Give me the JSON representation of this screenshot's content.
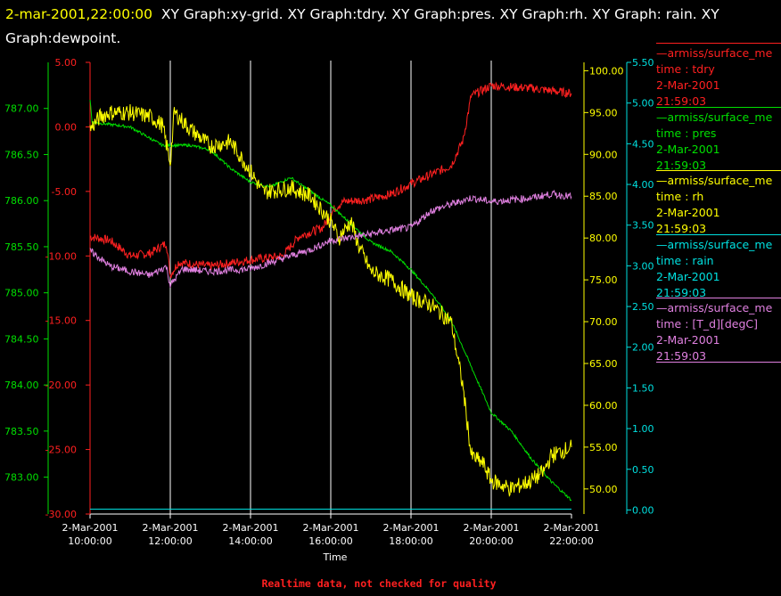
{
  "header": {
    "timestamp": "2-mar-2001,22:00:00",
    "graphs": "XY Graph:xy-grid.  XY Graph:tdry.  XY Graph:pres.  XY Graph:rh.  XY Graph: rain.  XY Graph:dewpoint."
  },
  "footer": {
    "note": "Realtime data, not checked for quality"
  },
  "colors": {
    "tdry": "#ff2020",
    "pres": "#00e000",
    "rh": "#ffff00",
    "rain": "#00e0e0",
    "dewpoint": "#e080e0",
    "grid": "#ffffff"
  },
  "legend": [
    {
      "name": "armiss/surface_me",
      "var": "time : tdry",
      "date": "2-Mar-2001",
      "time": "21:59:03",
      "color": "#ff2020"
    },
    {
      "name": "armiss/surface_me",
      "var": "time : pres",
      "date": "2-Mar-2001",
      "time": "21:59:03",
      "color": "#00e000"
    },
    {
      "name": "armiss/surface_me",
      "var": "time : rh",
      "date": "2-Mar-2001",
      "time": "21:59:03",
      "color": "#ffff00"
    },
    {
      "name": "armiss/surface_me",
      "var": "time : rain",
      "date": "2-Mar-2001",
      "time": "21:59:03",
      "color": "#00e0e0"
    },
    {
      "name": "armiss/surface_me",
      "var": "time : [T_d][degC]",
      "date": "2-Mar-2001",
      "time": "21:59:03",
      "color": "#e080e0"
    }
  ],
  "chart_data": {
    "type": "line",
    "xlabel": "Time",
    "x_range": [
      "2-Mar-2001 10:00:00",
      "2-Mar-2001 22:00:00"
    ],
    "x_ticks": [
      {
        "date": "2-Mar-2001",
        "time": "10:00:00",
        "hour": 10
      },
      {
        "date": "2-Mar-2001",
        "time": "12:00:00",
        "hour": 12
      },
      {
        "date": "2-Mar-2001",
        "time": "14:00:00",
        "hour": 14
      },
      {
        "date": "2-Mar-2001",
        "time": "16:00:00",
        "hour": 16
      },
      {
        "date": "2-Mar-2001",
        "time": "18:00:00",
        "hour": 18
      },
      {
        "date": "2-Mar-2001",
        "time": "20:00:00",
        "hour": 20
      },
      {
        "date": "2-Mar-2001",
        "time": "22:00:00",
        "hour": 22
      }
    ],
    "grid": "vertical",
    "axes": [
      {
        "id": "pres",
        "color": "#00e000",
        "range": [
          782.6,
          787.5
        ],
        "ticks": [
          "787.00",
          "786.50",
          "786.00",
          "785.50",
          "785.00",
          "784.50",
          "784.00",
          "783.50",
          "783.00"
        ]
      },
      {
        "id": "tdry",
        "color": "#ff2020",
        "range": [
          -30,
          5
        ],
        "ticks": [
          "5.00",
          "0.00",
          "-5.00",
          "-10.00",
          "-15.00",
          "-20.00",
          "-25.00",
          "-30.00"
        ]
      },
      {
        "id": "rh",
        "color": "#ffff00",
        "range": [
          47,
          101
        ],
        "ticks": [
          "100.00",
          "95.00",
          "90.00",
          "85.00",
          "80.00",
          "75.00",
          "70.00",
          "65.00",
          "60.00",
          "55.00",
          "50.00"
        ]
      },
      {
        "id": "rain",
        "color": "#00e0e0",
        "range": [
          -0.05,
          5.5
        ],
        "ticks": [
          "5.50",
          "5.00",
          "4.50",
          "4.00",
          "3.50",
          "3.00",
          "2.50",
          "2.00",
          "1.50",
          "1.00",
          "0.50",
          "0.00"
        ]
      }
    ],
    "series": [
      {
        "name": "time : tdry",
        "axis": "tdry",
        "color": "#ff2020",
        "noise": 0.35,
        "points": [
          [
            10,
            -8.5
          ],
          [
            10.5,
            -8.8
          ],
          [
            11,
            -10
          ],
          [
            11.5,
            -9.8
          ],
          [
            11.9,
            -9.0
          ],
          [
            12,
            -11.5
          ],
          [
            12.2,
            -10.5
          ],
          [
            13,
            -10.8
          ],
          [
            14,
            -10.3
          ],
          [
            14.8,
            -10
          ],
          [
            15.2,
            -8.5
          ],
          [
            15.8,
            -7.8
          ],
          [
            16.1,
            -6.3
          ],
          [
            16.3,
            -5.8
          ],
          [
            17,
            -5.6
          ],
          [
            17.5,
            -5.2
          ],
          [
            18,
            -4.4
          ],
          [
            19,
            -3.0
          ],
          [
            19.3,
            -1.0
          ],
          [
            19.5,
            2.4
          ],
          [
            20,
            3.2
          ],
          [
            21,
            3.0
          ],
          [
            22,
            2.6
          ]
        ]
      },
      {
        "name": "time : pres",
        "axis": "pres",
        "color": "#00e000",
        "noise": 0.015,
        "points": [
          [
            10,
            787.1
          ],
          [
            10.05,
            786.85
          ],
          [
            11,
            786.8
          ],
          [
            11.8,
            786.6
          ],
          [
            12.5,
            786.6
          ],
          [
            13,
            786.55
          ],
          [
            13.5,
            786.35
          ],
          [
            14,
            786.2
          ],
          [
            14.5,
            786.15
          ],
          [
            15,
            786.25
          ],
          [
            15.5,
            786.1
          ],
          [
            16,
            785.95
          ],
          [
            16.5,
            785.75
          ],
          [
            17,
            785.55
          ],
          [
            17.5,
            785.45
          ],
          [
            18,
            785.25
          ],
          [
            18.5,
            785.0
          ],
          [
            19,
            784.7
          ],
          [
            19.5,
            784.2
          ],
          [
            20,
            783.7
          ],
          [
            20.5,
            783.5
          ],
          [
            21,
            783.2
          ],
          [
            21.5,
            782.95
          ],
          [
            22,
            782.75
          ]
        ]
      },
      {
        "name": "time : rh",
        "axis": "rh",
        "color": "#ffff00",
        "noise": 1.0,
        "points": [
          [
            10,
            93
          ],
          [
            10.25,
            94.5
          ],
          [
            10.5,
            95
          ],
          [
            11,
            95
          ],
          [
            11.5,
            94.5
          ],
          [
            11.8,
            93.5
          ],
          [
            12,
            89
          ],
          [
            12.1,
            95
          ],
          [
            12.5,
            93
          ],
          [
            13,
            91
          ],
          [
            13.5,
            91.5
          ],
          [
            14,
            88
          ],
          [
            14.3,
            85.5
          ],
          [
            15,
            86
          ],
          [
            15.5,
            85
          ],
          [
            16,
            82
          ],
          [
            16.2,
            80
          ],
          [
            16.5,
            82
          ],
          [
            16.7,
            79
          ],
          [
            17,
            76
          ],
          [
            17.5,
            75
          ],
          [
            18,
            73
          ],
          [
            18.5,
            72
          ],
          [
            19,
            70
          ],
          [
            19.3,
            62
          ],
          [
            19.5,
            54
          ],
          [
            19.8,
            53
          ],
          [
            20,
            51
          ],
          [
            20.5,
            50
          ],
          [
            21,
            51
          ],
          [
            21.3,
            52
          ],
          [
            21.5,
            54
          ],
          [
            22,
            55
          ]
        ]
      },
      {
        "name": "time : rain",
        "axis": "rain",
        "color": "#00e0e0",
        "noise": 0,
        "points": [
          [
            10,
            0.01
          ],
          [
            22,
            0.01
          ]
        ]
      },
      {
        "name": "time : [T_d][degC]",
        "axis": "tdry",
        "color": "#e080e0",
        "noise": 0.28,
        "points": [
          [
            10,
            -9.6
          ],
          [
            10.5,
            -10.8
          ],
          [
            11,
            -11.2
          ],
          [
            11.5,
            -11.5
          ],
          [
            11.9,
            -10.8
          ],
          [
            12,
            -12.3
          ],
          [
            12.3,
            -11.0
          ],
          [
            13,
            -11.2
          ],
          [
            14,
            -11.0
          ],
          [
            15,
            -10
          ],
          [
            15.5,
            -9.5
          ],
          [
            16,
            -8.8
          ],
          [
            17,
            -8.3
          ],
          [
            17.5,
            -8
          ],
          [
            18,
            -7.8
          ],
          [
            18.5,
            -6.5
          ],
          [
            19,
            -6.0
          ],
          [
            19.5,
            -5.5
          ],
          [
            20,
            -5.8
          ],
          [
            21,
            -5.5
          ],
          [
            21.5,
            -5.2
          ],
          [
            22,
            -5.4
          ]
        ]
      }
    ]
  }
}
